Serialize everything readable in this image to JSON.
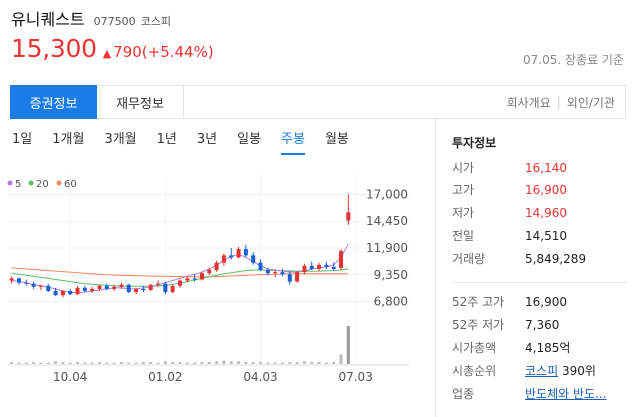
{
  "stock": {
    "name": "유니퀘스트",
    "code": "077500",
    "market": "코스피",
    "price": "15,300",
    "change_arrow": "▲",
    "change": "790(+5.44%)",
    "closed_text": "07.05. 장종료 기준"
  },
  "tabs": {
    "main": [
      "증권정보",
      "재무정보"
    ],
    "right": [
      "회사개요",
      "외인/기관"
    ]
  },
  "periods": [
    "1일",
    "1개월",
    "3개월",
    "1년",
    "3년",
    "일봉",
    "주봉",
    "월봉"
  ],
  "active_period": 6,
  "colors": {
    "up": "#e33333",
    "down": "#1b5fd6",
    "accent": "#1b7be7",
    "ma5": "#b57cde",
    "ma20": "#5cc06a",
    "ma60": "#f08a5d"
  },
  "chart_data": {
    "type": "candlestick",
    "legend": [
      "5",
      "20",
      "60"
    ],
    "y_ticks": [
      "17,000",
      "14,450",
      "11,900",
      "9,350",
      "6,800"
    ],
    "y_tick_values": [
      17000,
      14450,
      11900,
      9350,
      6800
    ],
    "ylim": [
      5800,
      18000
    ],
    "x_ticks": [
      "10.04",
      "01.02",
      "04.03",
      "07.03"
    ],
    "x_tick_index": [
      8,
      21,
      34,
      47
    ],
    "ma5": [
      8800,
      8700,
      8600,
      8400,
      8300,
      8150,
      8000,
      7800,
      7700,
      7650,
      7700,
      7800,
      7900,
      8000,
      8100,
      8100,
      8000,
      8000,
      8100,
      8200,
      8400,
      8600,
      8800,
      9000,
      9200,
      9400,
      9600,
      9900,
      10300,
      10700,
      11100,
      11300,
      11000,
      10600,
      10200,
      9900,
      9800,
      9700,
      9600,
      9600,
      9700,
      9900,
      10000,
      10100,
      10300,
      11000,
      12300
    ],
    "ma20": [
      9500,
      9400,
      9300,
      9200,
      9100,
      9000,
      8900,
      8800,
      8700,
      8600,
      8500,
      8450,
      8400,
      8350,
      8300,
      8250,
      8250,
      8250,
      8250,
      8250,
      8300,
      8350,
      8450,
      8550,
      8700,
      8850,
      9000,
      9150,
      9300,
      9450,
      9550,
      9650,
      9750,
      9800,
      9800,
      9780,
      9760,
      9740,
      9720,
      9700,
      9690,
      9680,
      9700,
      9720,
      9750,
      9800,
      9900
    ],
    "ma60": [
      10000,
      9950,
      9900,
      9850,
      9800,
      9750,
      9700,
      9650,
      9600,
      9550,
      9500,
      9450,
      9400,
      9350,
      9320,
      9300,
      9280,
      9260,
      9240,
      9220,
      9200,
      9190,
      9180,
      9170,
      9160,
      9150,
      9150,
      9160,
      9180,
      9200,
      9230,
      9260,
      9300,
      9330,
      9360,
      9380,
      9400,
      9420,
      9430,
      9440,
      9440,
      9440,
      9440,
      9440,
      9440,
      9440,
      9440
    ],
    "candles": [
      [
        8800,
        9200,
        8500,
        9000
      ],
      [
        9000,
        9100,
        8400,
        8600
      ],
      [
        8600,
        8900,
        8300,
        8500
      ],
      [
        8500,
        8700,
        8000,
        8200
      ],
      [
        8200,
        8400,
        7900,
        8300
      ],
      [
        8300,
        8500,
        7700,
        7800
      ],
      [
        7800,
        8100,
        7300,
        7400
      ],
      [
        7400,
        7900,
        7200,
        7800
      ],
      [
        7800,
        8000,
        7400,
        7500
      ],
      [
        7500,
        8300,
        7400,
        8100
      ],
      [
        8100,
        8300,
        7700,
        7800
      ],
      [
        7800,
        8200,
        7600,
        8000
      ],
      [
        8000,
        8400,
        7800,
        8300
      ],
      [
        8300,
        8500,
        7900,
        8000
      ],
      [
        8000,
        8400,
        7800,
        8200
      ],
      [
        8200,
        8600,
        8000,
        8400
      ],
      [
        8400,
        8500,
        7600,
        7700
      ],
      [
        7700,
        8100,
        7500,
        8000
      ],
      [
        8000,
        8300,
        7700,
        7900
      ],
      [
        7900,
        8500,
        7800,
        8400
      ],
      [
        8400,
        8800,
        8200,
        8500
      ],
      [
        8500,
        8700,
        7500,
        7700
      ],
      [
        7700,
        8400,
        7600,
        8300
      ],
      [
        8300,
        8900,
        8100,
        8800
      ],
      [
        8800,
        9200,
        8600,
        9000
      ],
      [
        9000,
        9400,
        8700,
        8900
      ],
      [
        8900,
        9600,
        8800,
        9500
      ],
      [
        9500,
        10000,
        9300,
        9800
      ],
      [
        9800,
        10700,
        9600,
        10500
      ],
      [
        10500,
        11400,
        10200,
        11200
      ],
      [
        11200,
        11900,
        10800,
        11000
      ],
      [
        11000,
        12000,
        10900,
        11800
      ],
      [
        11800,
        12200,
        11000,
        11200
      ],
      [
        11200,
        11500,
        10300,
        10500
      ],
      [
        10500,
        10800,
        9700,
        9800
      ],
      [
        9800,
        10000,
        9300,
        9500
      ],
      [
        9500,
        9800,
        9100,
        9600
      ],
      [
        9600,
        9900,
        9200,
        9400
      ],
      [
        9400,
        9700,
        8400,
        8700
      ],
      [
        8700,
        9700,
        8600,
        9600
      ],
      [
        9600,
        10400,
        9400,
        10200
      ],
      [
        10200,
        10600,
        9800,
        9900
      ],
      [
        9900,
        10500,
        9700,
        10300
      ],
      [
        10300,
        10600,
        9900,
        10100
      ],
      [
        10100,
        10500,
        9700,
        9900
      ],
      [
        10000,
        11800,
        9800,
        11600
      ],
      [
        14510,
        17000,
        14100,
        15300
      ]
    ],
    "volumes": [
      3,
      2,
      2,
      3,
      2,
      2,
      4,
      3,
      2,
      3,
      2,
      2,
      3,
      2,
      2,
      3,
      2,
      2,
      3,
      3,
      2,
      4,
      3,
      3,
      2,
      2,
      3,
      3,
      4,
      5,
      4,
      4,
      3,
      3,
      3,
      2,
      2,
      2,
      3,
      3,
      4,
      3,
      3,
      2,
      3,
      14,
      55
    ]
  },
  "invest": {
    "title": "투자정보",
    "rows": [
      {
        "label": "시가",
        "value": "16,140",
        "style": "red"
      },
      {
        "label": "고가",
        "value": "16,900",
        "style": "red"
      },
      {
        "label": "저가",
        "value": "14,960",
        "style": "red"
      },
      {
        "label": "전일",
        "value": "14,510",
        "style": "plain"
      },
      {
        "label": "거래량",
        "value": "5,849,289",
        "style": "plain"
      }
    ],
    "rows2": [
      {
        "label": "52주 고가",
        "value": "16,900"
      },
      {
        "label": "52주 저가",
        "value": "7,360"
      },
      {
        "label": "시가총액",
        "value": "4,185억"
      },
      {
        "label": "시총순위",
        "value_link": "코스피",
        "value_rest": " 390위"
      },
      {
        "label": "업종",
        "value_link": "반도체와 반도..."
      }
    ]
  }
}
